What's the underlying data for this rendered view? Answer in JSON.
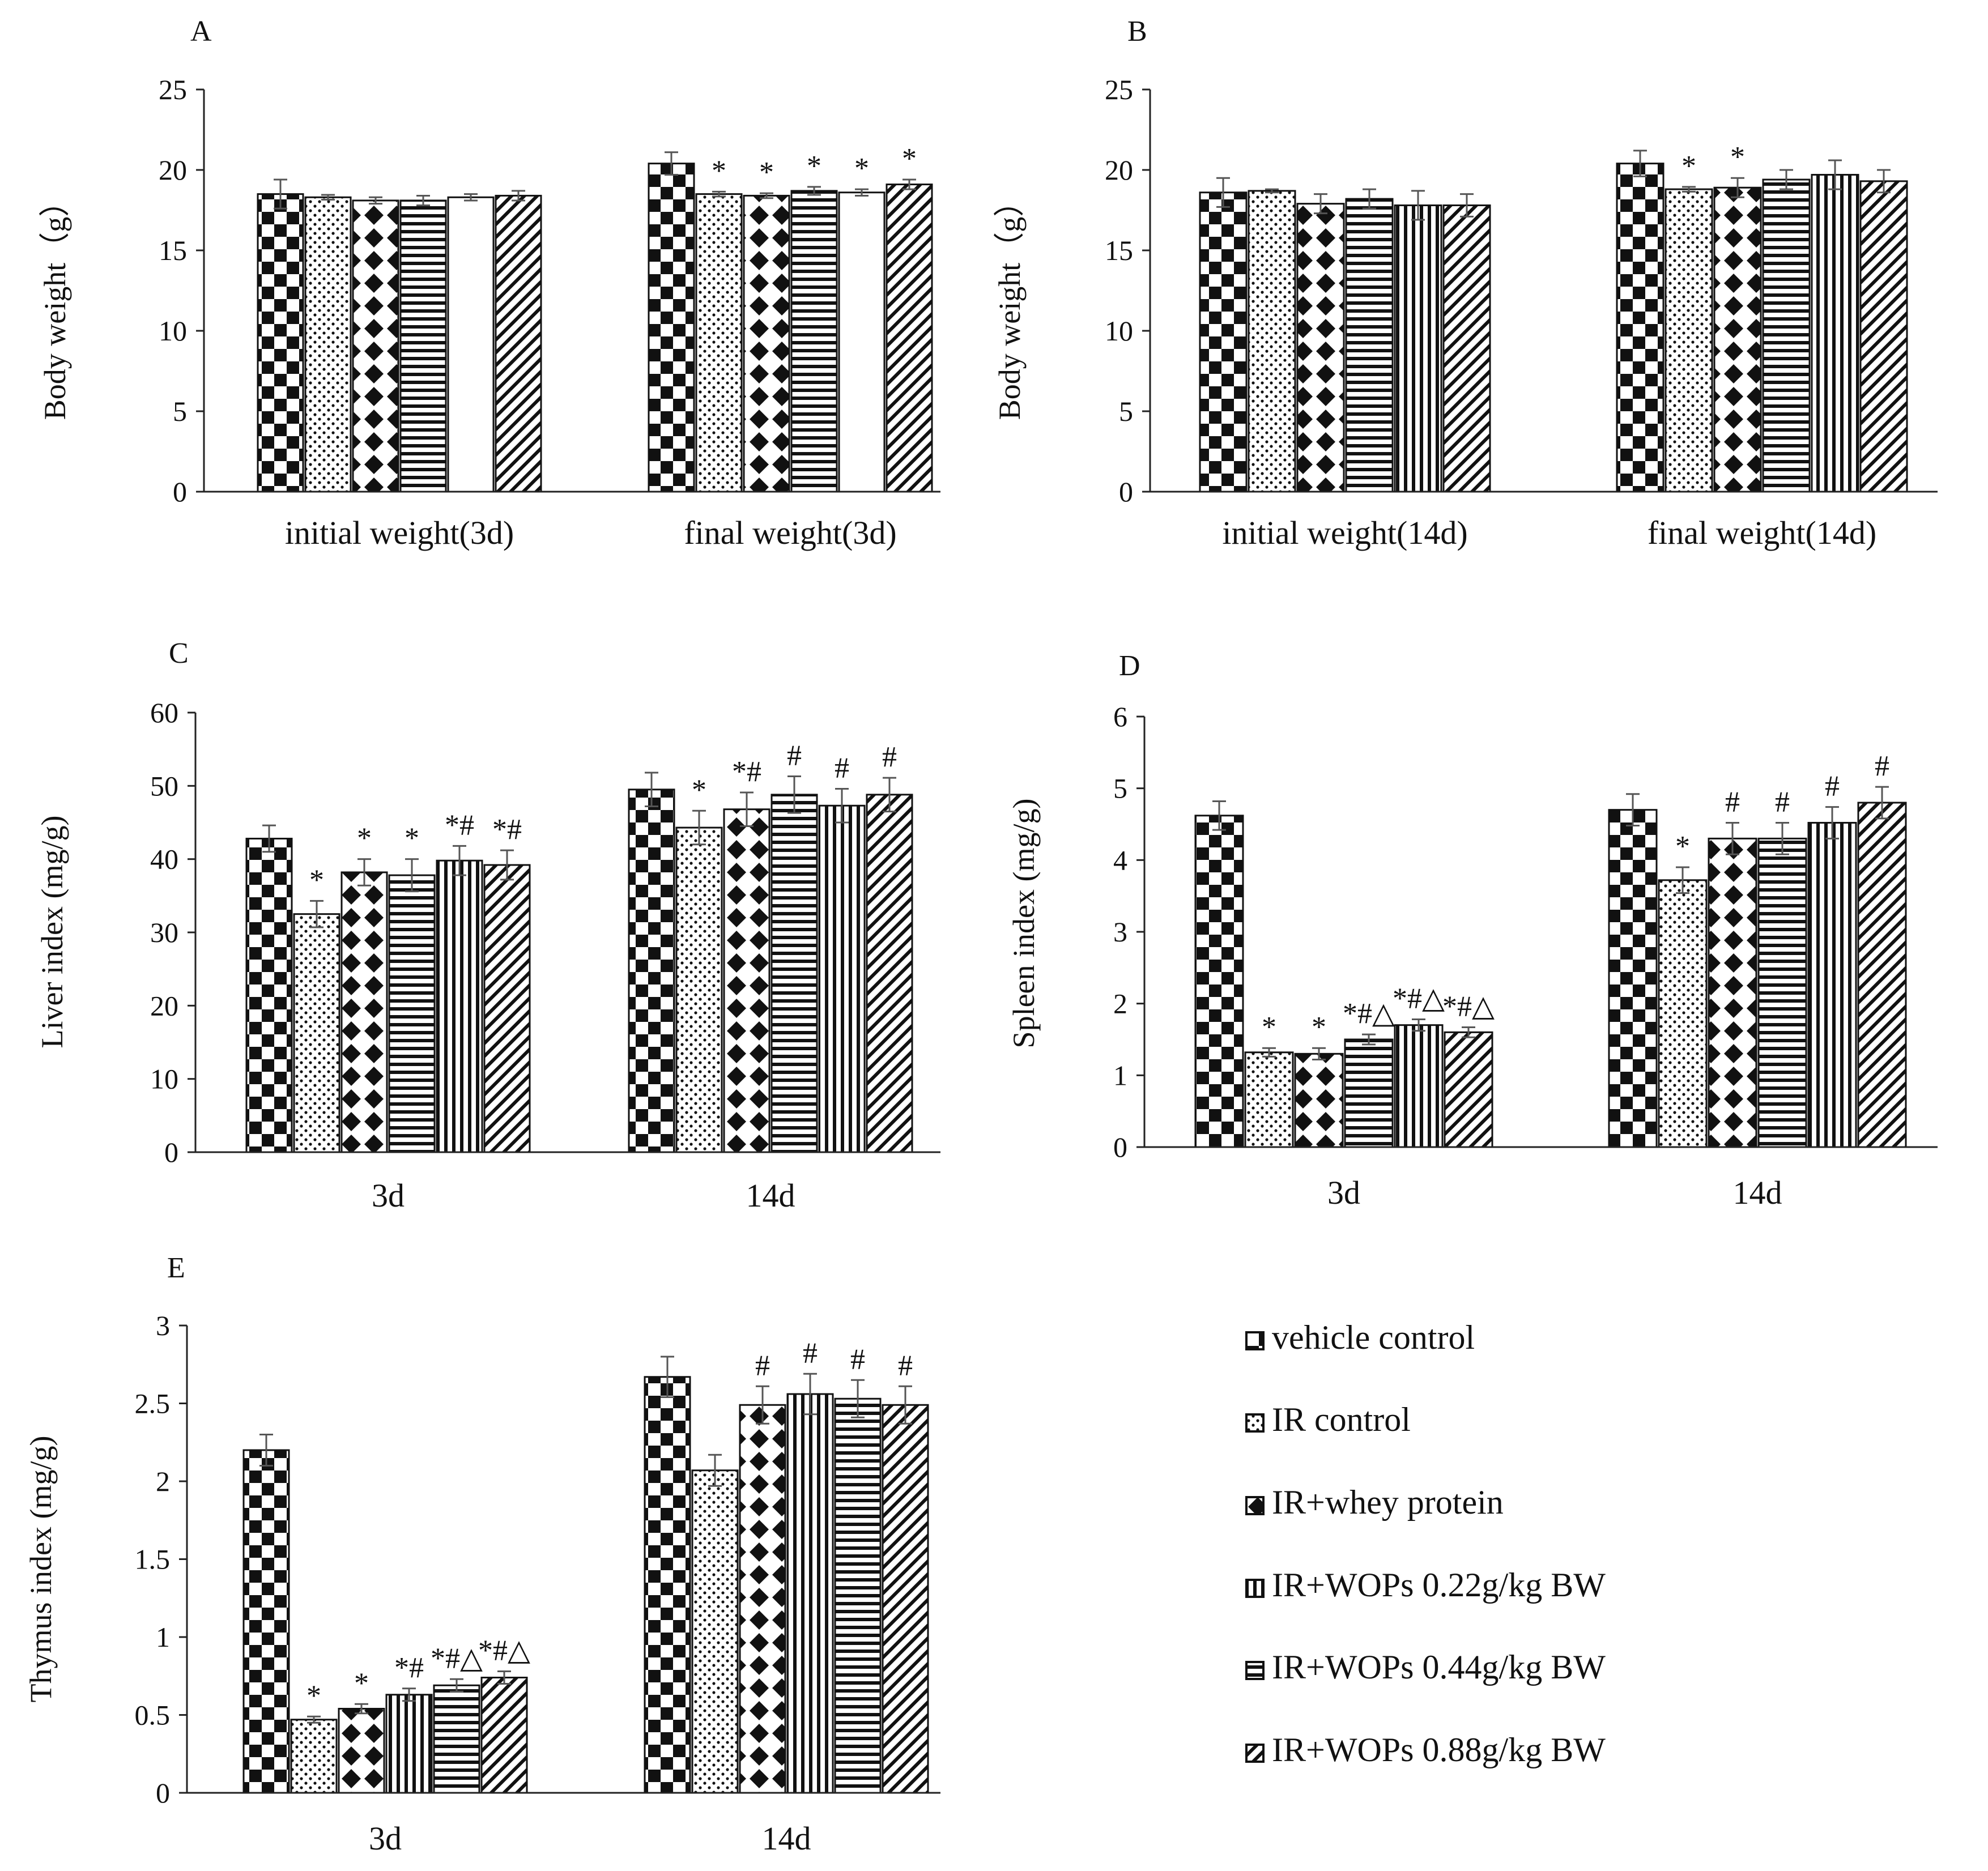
{
  "legend": [
    {
      "label": "vehicle control",
      "pattern": "checker"
    },
    {
      "label": "IR control",
      "pattern": "dots"
    },
    {
      "label": "IR+whey protein",
      "pattern": "diamond"
    },
    {
      "label": "IR+WOPs 0.22g/kg BW",
      "pattern": "vlines"
    },
    {
      "label": "IR+WOPs 0.44g/kg BW",
      "pattern": "hlines"
    },
    {
      "label": "IR+WOPs 0.88g/kg BW",
      "pattern": "diag"
    }
  ],
  "chart_data": [
    {
      "panel": "A",
      "type": "bar",
      "ylabel": "Body weight（g）",
      "ylim": [
        0,
        25
      ],
      "yticks": [
        "0",
        "5",
        "10",
        "15",
        "20",
        "25"
      ],
      "categories": [
        "initial weight(3d)",
        "final weight(3d)"
      ],
      "patterns": [
        "checker",
        "dots",
        "diamond",
        "hlines",
        "blank",
        "diag"
      ],
      "groups": [
        {
          "values": [
            18.5,
            18.3,
            18.1,
            18.1,
            18.3,
            18.4
          ],
          "errors": [
            0.9,
            0.15,
            0.2,
            0.3,
            0.2,
            0.3
          ],
          "marks": [
            "",
            "",
            "",
            "",
            "",
            ""
          ]
        },
        {
          "values": [
            20.4,
            18.5,
            18.4,
            18.7,
            18.6,
            19.1
          ],
          "errors": [
            0.7,
            0.15,
            0.15,
            0.25,
            0.2,
            0.3
          ],
          "marks": [
            "",
            "*",
            "*",
            "*",
            "*",
            "*"
          ]
        }
      ]
    },
    {
      "panel": "B",
      "type": "bar",
      "ylabel": "Body weight（g）",
      "ylim": [
        0,
        25
      ],
      "yticks": [
        "0",
        "5",
        "10",
        "15",
        "20",
        "25"
      ],
      "categories": [
        "initial weight(14d)",
        "final weight(14d)"
      ],
      "patterns": [
        "checker",
        "dots",
        "diamond",
        "hlines",
        "vlines",
        "diag"
      ],
      "groups": [
        {
          "values": [
            18.6,
            18.7,
            17.9,
            18.2,
            17.8,
            17.8
          ],
          "errors": [
            0.9,
            0.1,
            0.6,
            0.6,
            0.9,
            0.7
          ],
          "marks": [
            "",
            "",
            "",
            "",
            "",
            ""
          ]
        },
        {
          "values": [
            20.4,
            18.8,
            18.9,
            19.4,
            19.7,
            19.3
          ],
          "errors": [
            0.8,
            0.15,
            0.6,
            0.6,
            0.9,
            0.7
          ],
          "marks": [
            "",
            "*",
            "*",
            "",
            "",
            ""
          ]
        }
      ]
    },
    {
      "panel": "C",
      "type": "bar",
      "ylabel": "Liver index (mg/g)",
      "ylim": [
        0,
        60
      ],
      "yticks": [
        "0",
        "10",
        "20",
        "30",
        "40",
        "50",
        "60"
      ],
      "categories": [
        "3d",
        "14d"
      ],
      "patterns": [
        "checker",
        "dots",
        "diamond",
        "hlines",
        "vlines",
        "diag"
      ],
      "groups": [
        {
          "values": [
            42.8,
            32.5,
            38.2,
            37.8,
            39.8,
            39.2
          ],
          "errors": [
            1.8,
            1.8,
            1.8,
            2.2,
            2.0,
            2.0
          ],
          "marks": [
            "",
            "*",
            "*",
            "*",
            "*#",
            "*#"
          ]
        },
        {
          "values": [
            49.5,
            44.3,
            46.8,
            48.8,
            47.3,
            48.8
          ],
          "errors": [
            2.3,
            2.3,
            2.3,
            2.5,
            2.3,
            2.3
          ],
          "marks": [
            "",
            "*",
            "*#",
            "#",
            "#",
            "#"
          ]
        }
      ]
    },
    {
      "panel": "D",
      "type": "bar",
      "ylabel": "Spleen index (mg/g)",
      "ylim": [
        0,
        6
      ],
      "yticks": [
        "0",
        "1",
        "2",
        "3",
        "4",
        "5",
        "6"
      ],
      "categories": [
        "3d",
        "14d"
      ],
      "patterns": [
        "checker",
        "dots",
        "diamond",
        "hlines",
        "vlines",
        "diag"
      ],
      "groups": [
        {
          "values": [
            4.62,
            1.32,
            1.3,
            1.5,
            1.7,
            1.6
          ],
          "errors": [
            0.2,
            0.06,
            0.08,
            0.07,
            0.08,
            0.07
          ],
          "marks": [
            "",
            "*",
            "*",
            "*#△",
            "*#△",
            "*#△"
          ]
        },
        {
          "values": [
            4.7,
            3.72,
            4.3,
            4.3,
            4.52,
            4.8
          ],
          "errors": [
            0.22,
            0.18,
            0.22,
            0.22,
            0.22,
            0.22
          ],
          "marks": [
            "",
            "*",
            "#",
            "#",
            "#",
            "#"
          ]
        }
      ]
    },
    {
      "panel": "E",
      "type": "bar",
      "ylabel": "Thymus index (mg/g)",
      "ylim": [
        0,
        3
      ],
      "yticks": [
        "0",
        "0.5",
        "1",
        "1.5",
        "2",
        "2.5",
        "3"
      ],
      "categories": [
        "3d",
        "14d"
      ],
      "patterns": [
        "checker",
        "dots",
        "diamond",
        "vlines",
        "hlines",
        "diag"
      ],
      "groups": [
        {
          "values": [
            2.2,
            0.47,
            0.54,
            0.63,
            0.69,
            0.74
          ],
          "errors": [
            0.1,
            0.02,
            0.03,
            0.04,
            0.04,
            0.04
          ],
          "marks": [
            "",
            "*",
            "*",
            "*#",
            "*#△",
            "*#△"
          ]
        },
        {
          "values": [
            2.67,
            2.07,
            2.49,
            2.56,
            2.53,
            2.49
          ],
          "errors": [
            0.13,
            0.1,
            0.12,
            0.13,
            0.12,
            0.12
          ],
          "marks": [
            "",
            "",
            "#",
            "#",
            "#",
            "#"
          ]
        }
      ]
    }
  ]
}
